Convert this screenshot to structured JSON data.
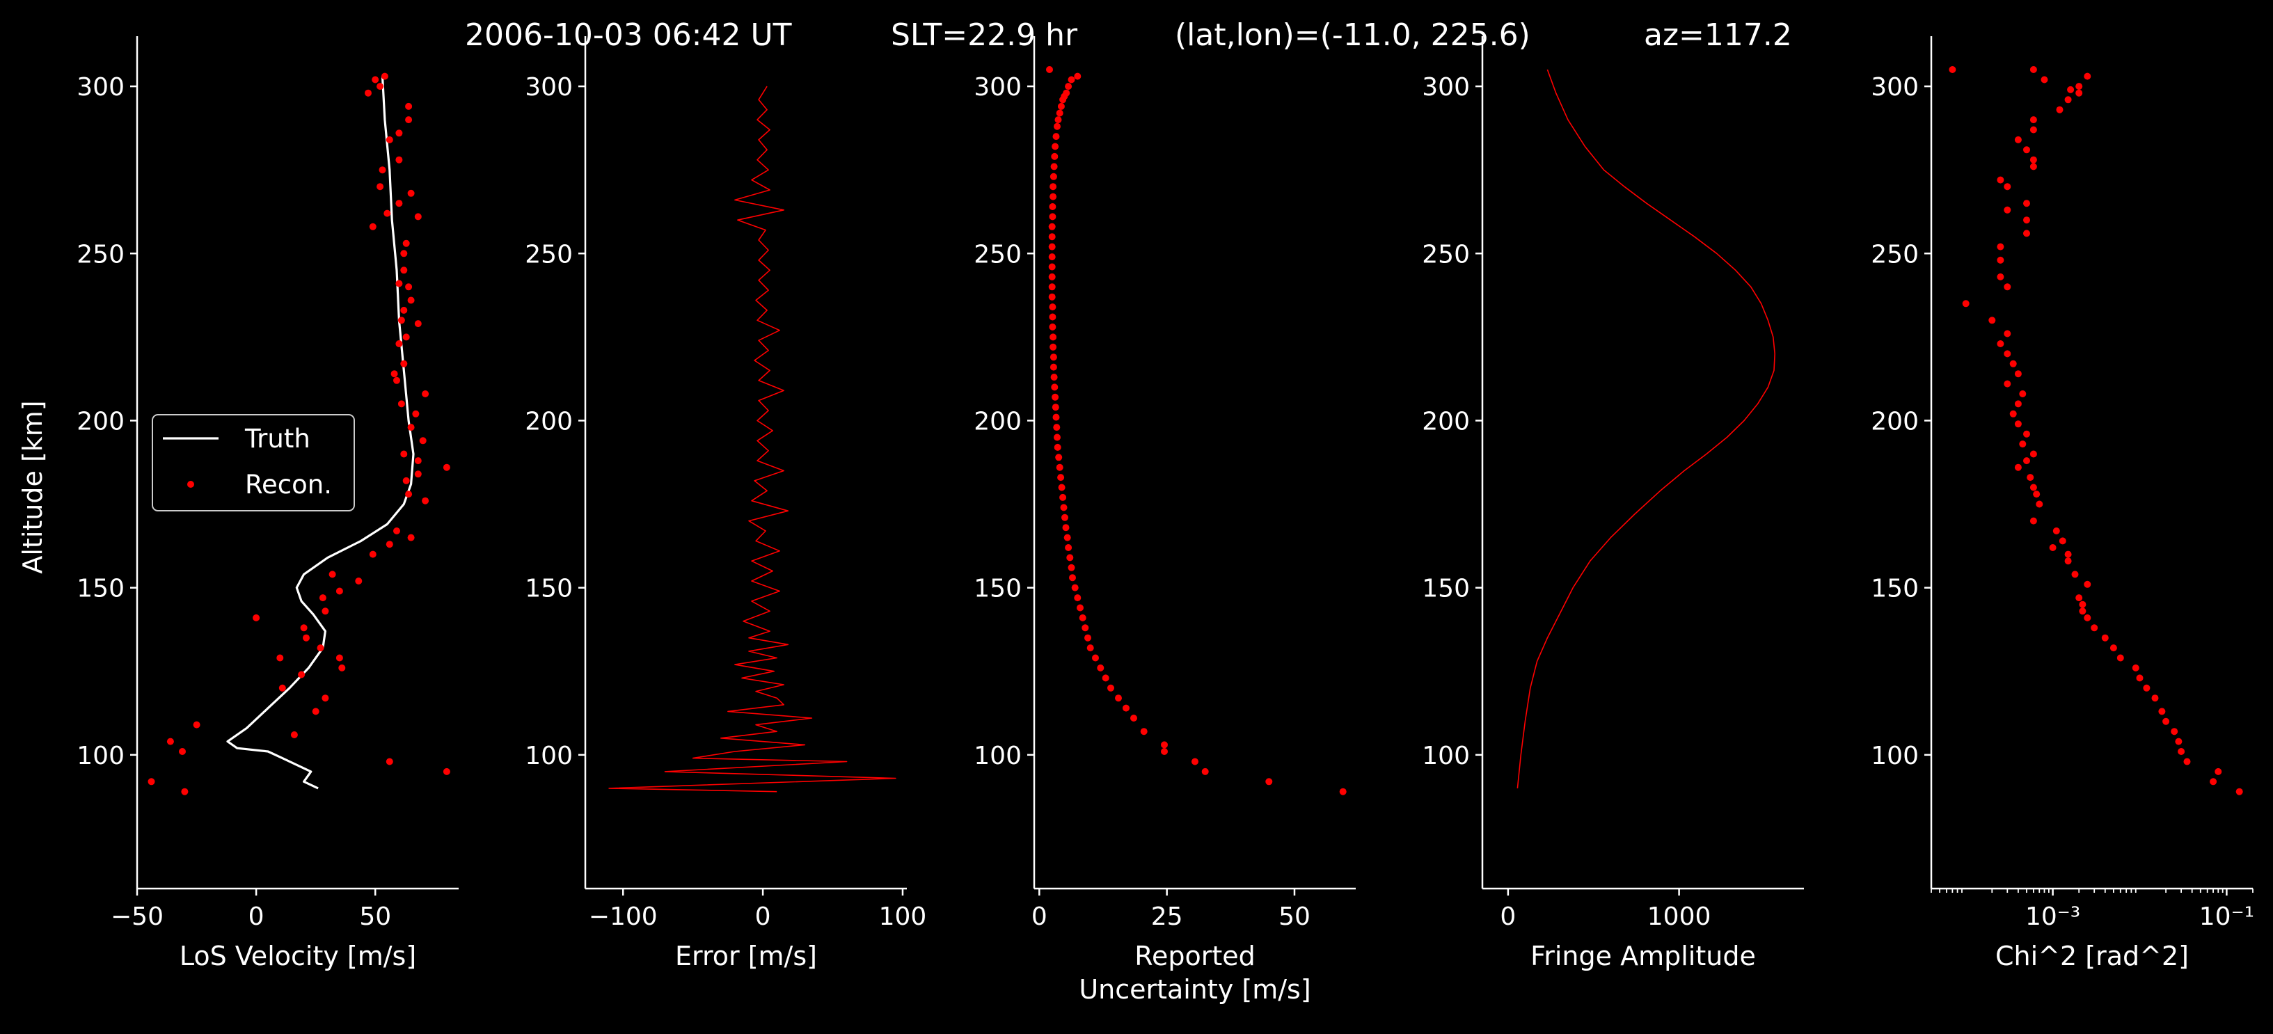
{
  "title": {
    "time": "2006-10-03 06:42 UT",
    "slt": "SLT=22.9 hr",
    "latlon": "(lat,lon)=(-11.0, 225.6)",
    "az": "az=117.2"
  },
  "colors": {
    "background": "#000000",
    "axes": "#ffffff",
    "truth": "#ffffff",
    "recon": "#ff0000"
  },
  "chart_data": [
    {
      "type": "line",
      "xlabel": "LoS Velocity [m/s]",
      "ylabel": "Altitude [km]",
      "xlim": [
        -50,
        85
      ],
      "ylim": [
        60,
        315
      ],
      "xticks": [
        -50,
        0,
        50
      ],
      "xticklabels": [
        "−50",
        "0",
        "50"
      ],
      "yticks": [
        100,
        150,
        200,
        250,
        300
      ],
      "yticklabels": [
        "100",
        "150",
        "200",
        "250",
        "300"
      ],
      "legend": {
        "placement": "center-left",
        "entries": [
          "Truth",
          "Recon."
        ]
      },
      "series": [
        {
          "name": "Truth",
          "style": "line",
          "x": [
            26,
            20,
            23,
            11,
            5,
            -8,
            -12,
            -4,
            5,
            14,
            22,
            28,
            29,
            24,
            19,
            17,
            20,
            30,
            44,
            55,
            62,
            65,
            66,
            64,
            62,
            60,
            59,
            57,
            56,
            54,
            53
          ],
          "y": [
            90,
            92,
            95,
            99,
            101,
            102,
            104,
            108,
            114,
            120,
            126,
            132,
            137,
            142,
            146,
            150,
            154,
            159,
            164,
            169,
            175,
            181,
            190,
            200,
            215,
            230,
            245,
            260,
            275,
            290,
            303
          ]
        },
        {
          "name": "Recon.",
          "style": "points",
          "x": [
            -30,
            -44,
            56,
            80,
            -36,
            -31,
            -25,
            16,
            25,
            29,
            11,
            19,
            36,
            35,
            10,
            27,
            21,
            20,
            29,
            0,
            28,
            35,
            43,
            32,
            49,
            56,
            65,
            59,
            71,
            64,
            63,
            68,
            80,
            68,
            62,
            70,
            65,
            67,
            61,
            71,
            59,
            58,
            62,
            60,
            63,
            61,
            68,
            62,
            65,
            64,
            60,
            62,
            62,
            63,
            49,
            55,
            68,
            60,
            65,
            52,
            53,
            60,
            56,
            60,
            64,
            64,
            47,
            52,
            54,
            50
          ],
          "y": [
            89,
            92,
            98,
            95,
            104,
            101,
            109,
            106,
            113,
            117,
            120,
            124,
            126,
            129,
            129,
            132,
            135,
            138,
            143,
            141,
            147,
            149,
            152,
            154,
            160,
            163,
            165,
            167,
            176,
            178,
            182,
            184,
            186,
            188,
            190,
            194,
            198,
            202,
            205,
            208,
            212,
            214,
            217,
            223,
            225,
            230,
            229,
            233,
            236,
            240,
            241,
            245,
            250,
            253,
            258,
            262,
            261,
            265,
            268,
            270,
            275,
            278,
            284,
            286,
            290,
            294,
            298,
            300,
            303,
            302
          ]
        }
      ]
    },
    {
      "type": "line",
      "xlabel": "Error [m/s]",
      "xlim": [
        -127,
        103
      ],
      "ylim": [
        60,
        315
      ],
      "xticks": [
        -100,
        0,
        100
      ],
      "xticklabels": [
        "−100",
        "0",
        "100"
      ],
      "yticks": [
        100,
        150,
        200,
        250,
        300
      ],
      "yticklabels": [
        "100",
        "150",
        "200",
        "250",
        "300"
      ],
      "series": [
        {
          "name": "",
          "style": "line",
          "x": [
            10,
            -110,
            95,
            -70,
            60,
            -50,
            -20,
            30,
            -30,
            10,
            -5,
            35,
            -25,
            15,
            10,
            -5,
            15,
            -15,
            8,
            -20,
            10,
            -10,
            18,
            -10,
            5,
            -14,
            5,
            -8,
            12,
            -8,
            7,
            -8,
            12,
            -5,
            2,
            -10,
            18,
            -8,
            3,
            -6,
            15,
            -4,
            4,
            -4,
            7,
            -4,
            4,
            -3,
            15,
            -3,
            5,
            -6,
            4,
            -3,
            12,
            -4,
            3,
            -5,
            4,
            -3,
            5,
            -3,
            4,
            -3,
            2,
            -18,
            15,
            -20,
            5,
            -8,
            4,
            -4,
            3,
            -3,
            5,
            -4,
            3,
            -3,
            3
          ],
          "y": [
            89,
            90,
            93,
            95,
            98,
            99,
            101,
            103,
            105,
            107,
            109,
            111,
            113,
            115,
            117,
            119,
            121,
            123,
            125,
            127,
            129,
            131,
            133,
            135,
            137,
            140,
            143,
            146,
            149,
            152,
            155,
            158,
            161,
            164,
            167,
            170,
            173,
            176,
            179,
            182,
            185,
            188,
            191,
            194,
            197,
            200,
            203,
            206,
            209,
            212,
            215,
            218,
            221,
            224,
            227,
            230,
            233,
            236,
            239,
            242,
            245,
            248,
            251,
            254,
            257,
            260,
            263,
            266,
            269,
            272,
            275,
            278,
            281,
            284,
            287,
            290,
            293,
            296,
            300
          ]
        }
      ]
    },
    {
      "type": "scatter",
      "xlabel": "Reported Uncertainty [m/s]",
      "xlabel_lines": [
        "Reported",
        "Uncertainty [m/s]"
      ],
      "xlim": [
        -1,
        62
      ],
      "ylim": [
        60,
        315
      ],
      "xticks": [
        0,
        25,
        50
      ],
      "xticklabels": [
        "0",
        "25",
        "50"
      ],
      "yticks": [
        100,
        150,
        200,
        250,
        300
      ],
      "yticklabels": [
        "100",
        "150",
        "200",
        "250",
        "300"
      ],
      "series": [
        {
          "name": "",
          "style": "points",
          "x": [
            59.5,
            45.0,
            32.5,
            30.5,
            24.5,
            24.5,
            20.5,
            18.5,
            17.0,
            15.5,
            14.0,
            13.0,
            12.0,
            11.0,
            10.0,
            9.5,
            9.0,
            8.5,
            8.0,
            7.5,
            7.0,
            6.5,
            6.3,
            6.0,
            5.7,
            5.5,
            5.2,
            5.0,
            4.8,
            4.6,
            4.4,
            4.2,
            4.0,
            3.8,
            3.6,
            3.5,
            3.4,
            3.3,
            3.2,
            3.1,
            3.0,
            2.9,
            2.8,
            2.8,
            2.7,
            2.7,
            2.6,
            2.6,
            2.6,
            2.5,
            2.5,
            2.5,
            2.5,
            2.5,
            2.5,
            2.5,
            2.5,
            2.6,
            2.6,
            2.7,
            2.7,
            2.8,
            2.9,
            3.0,
            3.1,
            3.3,
            3.5,
            3.7,
            4.0,
            4.3,
            4.6,
            4.9,
            5.3,
            5.7,
            6.3,
            7.5,
            2.0
          ],
          "y": [
            89,
            92,
            95,
            98,
            101,
            103,
            107,
            111,
            114,
            117,
            120,
            123,
            126,
            129,
            132,
            135,
            138,
            141,
            144,
            147,
            150,
            153,
            156,
            159,
            162,
            165,
            168,
            171,
            174,
            177,
            180,
            183,
            186,
            189,
            192,
            195,
            198,
            201,
            204,
            207,
            210,
            213,
            216,
            219,
            222,
            225,
            228,
            231,
            234,
            237,
            240,
            243,
            246,
            249,
            252,
            255,
            258,
            261,
            264,
            267,
            270,
            273,
            276,
            279,
            282,
            285,
            288,
            290,
            292,
            294,
            296,
            297,
            298,
            300,
            302,
            303,
            305
          ]
        }
      ]
    },
    {
      "type": "line",
      "xlabel": "Fringe Amplitude",
      "xlim": [
        -150,
        1730
      ],
      "ylim": [
        60,
        315
      ],
      "xticks": [
        0,
        1000
      ],
      "xticklabels": [
        "0",
        "1000"
      ],
      "yticks": [
        100,
        150,
        200,
        250,
        300
      ],
      "yticklabels": [
        "100",
        "150",
        "200",
        "250",
        "300"
      ],
      "series": [
        {
          "name": "",
          "style": "line",
          "x": [
            55,
            75,
            100,
            130,
            170,
            230,
            300,
            380,
            480,
            600,
            740,
            890,
            1030,
            1160,
            1280,
            1380,
            1460,
            1520,
            1555,
            1560,
            1550,
            1520,
            1480,
            1420,
            1330,
            1220,
            1090,
            950,
            810,
            680,
            560,
            450,
            350,
            280,
            230
          ],
          "y": [
            90,
            100,
            110,
            120,
            128,
            135,
            142,
            150,
            158,
            165,
            172,
            179,
            185,
            190,
            195,
            200,
            205,
            210,
            215,
            220,
            225,
            230,
            235,
            240,
            245,
            250,
            255,
            260,
            265,
            270,
            275,
            282,
            290,
            298,
            305
          ]
        }
      ]
    },
    {
      "type": "scatter",
      "xlabel": "Chi^2 [rad^2]",
      "xscale": "log",
      "xlim": [
        4e-05,
        0.2
      ],
      "ylim": [
        60,
        315
      ],
      "xticks": [
        0.001,
        0.1
      ],
      "xticklabels": [
        "10⁻³",
        "10⁻¹"
      ],
      "yticks": [
        100,
        150,
        200,
        250,
        300
      ],
      "yticklabels": [
        "100",
        "150",
        "200",
        "250",
        "300"
      ],
      "series": [
        {
          "name": "",
          "style": "points",
          "x": [
            0.14,
            0.07,
            0.08,
            0.035,
            0.03,
            0.028,
            0.025,
            0.02,
            0.018,
            0.015,
            0.012,
            0.01,
            0.009,
            0.006,
            0.005,
            0.004,
            0.003,
            0.0025,
            0.0022,
            0.0022,
            0.002,
            0.0025,
            0.0018,
            0.0015,
            0.0015,
            0.001,
            0.0013,
            0.0011,
            0.0006,
            0.0007,
            0.00065,
            0.0006,
            0.00055,
            0.0004,
            0.0005,
            0.0006,
            0.00045,
            0.0005,
            0.0004,
            0.00035,
            0.0004,
            0.00045,
            0.0003,
            0.0004,
            0.00035,
            0.0003,
            0.00025,
            0.0003,
            0.0002,
            0.0001,
            0.0003,
            0.00025,
            0.00025,
            0.00025,
            0.0005,
            0.0005,
            0.0003,
            0.0005,
            0.0003,
            0.00025,
            0.0006,
            0.0006,
            0.0005,
            0.0004,
            0.0006,
            0.0006,
            0.0012,
            0.0015,
            0.0016,
            0.0008,
            0.0006,
            0.002,
            0.002,
            0.0025,
            7e-05
          ],
          "y": [
            89,
            92,
            95,
            98,
            101,
            104,
            107,
            110,
            113,
            117,
            120,
            123,
            126,
            129,
            132,
            135,
            138,
            141,
            143,
            145,
            147,
            151,
            154,
            158,
            160,
            162,
            164,
            167,
            170,
            175,
            178,
            180,
            183,
            186,
            188,
            190,
            193,
            196,
            199,
            202,
            205,
            208,
            211,
            214,
            217,
            220,
            223,
            226,
            230,
            235,
            240,
            243,
            248,
            252,
            256,
            260,
            263,
            265,
            270,
            272,
            276,
            278,
            281,
            284,
            287,
            290,
            293,
            296,
            299,
            302,
            305,
            300,
            298,
            303,
            305
          ]
        }
      ]
    }
  ]
}
